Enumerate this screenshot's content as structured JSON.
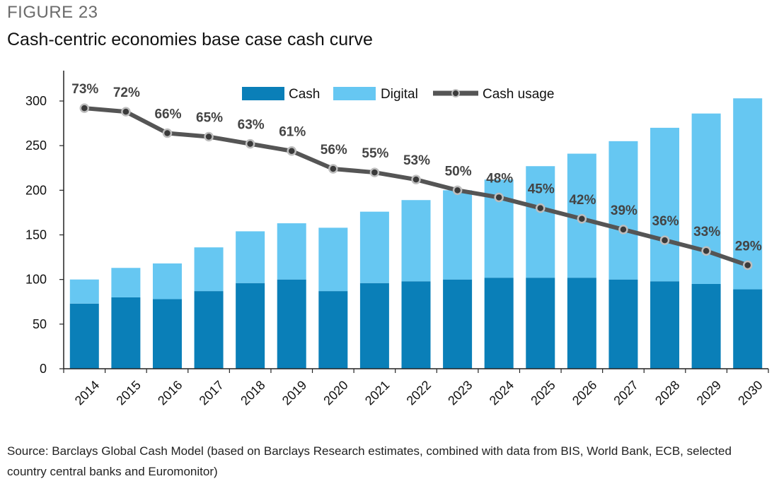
{
  "header": {
    "figure_label": "FIGURE 23",
    "title": "Cash-centric economies base case cash curve"
  },
  "source_note": "Source: Barclays Global Cash Model (based on Barclays Research estimates, combined with data from BIS, World Bank, ECB, selected country central banks and Euromonitor)",
  "colors": {
    "cash": "#0a7fb8",
    "digital": "#66c7f2",
    "line": "#555555",
    "marker_fill": "#bdbdbd",
    "axis": "#222222"
  },
  "chart_data": {
    "type": "bar",
    "stacked": true,
    "categories": [
      "2014",
      "2015",
      "2016",
      "2017",
      "2018",
      "2019",
      "2020",
      "2021",
      "2022",
      "2023",
      "2024",
      "2025",
      "2026",
      "2027",
      "2028",
      "2029",
      "2030"
    ],
    "series": [
      {
        "name": "Cash",
        "type": "bar",
        "values": [
          73,
          80,
          78,
          87,
          96,
          100,
          87,
          96,
          98,
          100,
          102,
          102,
          102,
          100,
          98,
          95,
          89
        ]
      },
      {
        "name": "Digital",
        "type": "bar",
        "values": [
          27,
          33,
          40,
          49,
          58,
          63,
          71,
          80,
          91,
          100,
          110,
          125,
          139,
          155,
          172,
          191,
          214
        ]
      },
      {
        "name": "Cash usage",
        "type": "line",
        "values": [
          73,
          72,
          66,
          65,
          63,
          61,
          56,
          55,
          53,
          50,
          48,
          45,
          42,
          39,
          36,
          33,
          29
        ],
        "labels": [
          "73%",
          "72%",
          "66%",
          "65%",
          "63%",
          "61%",
          "56%",
          "55%",
          "53%",
          "50%",
          "48%",
          "45%",
          "42%",
          "39%",
          "36%",
          "33%",
          "29%"
        ]
      }
    ],
    "y_ticks": [
      0,
      50,
      100,
      150,
      200,
      250,
      300
    ],
    "ylim": [
      0,
      310
    ],
    "line_scale_note": "",
    "legend_position": "top-center",
    "grid": false
  }
}
